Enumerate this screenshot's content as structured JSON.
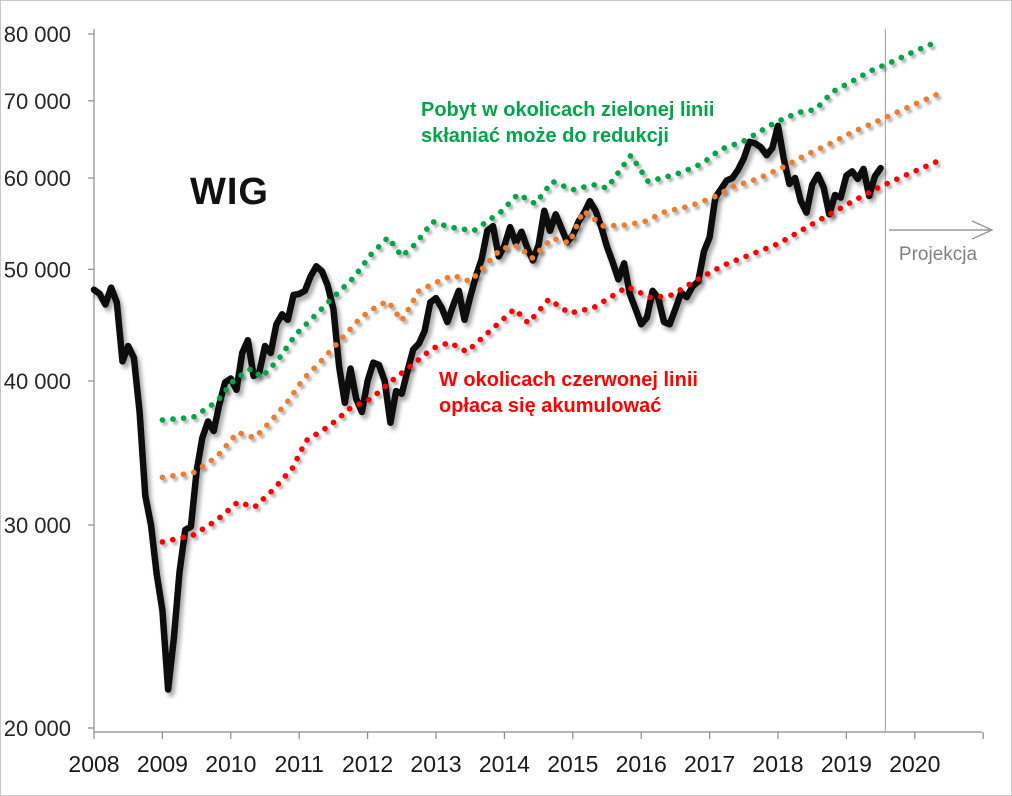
{
  "chart": {
    "title_label": "WIG",
    "projection_label": "Projekcja",
    "annotations": {
      "green_note": {
        "line1": "Pobyt w okolicach zielonej linii",
        "line2": "skłaniać może do redukcji",
        "color": "#00A44A"
      },
      "red_note": {
        "line1": "W okolicach czerwonej linii",
        "line2": "opłaca się akumulować",
        "color": "#FF0000"
      }
    }
  },
  "chart_data": {
    "type": "line",
    "title": "WIG",
    "grid": false,
    "legend": false,
    "x_axis": {
      "range": [
        2008,
        2020.99
      ],
      "tick_years": [
        2008,
        2009,
        2010,
        2011,
        2012,
        2013,
        2014,
        2015,
        2016,
        2017,
        2018,
        2019,
        2020
      ]
    },
    "y_axis": {
      "scale": "log",
      "range": [
        20000,
        80000
      ],
      "ticks": [
        {
          "value": 20000,
          "label": "20 000"
        },
        {
          "value": 30000,
          "label": "30 000"
        },
        {
          "value": 40000,
          "label": "40 000"
        },
        {
          "value": 50000,
          "label": "50 000"
        },
        {
          "value": 60000,
          "label": "60 000"
        },
        {
          "value": 70000,
          "label": "70 000"
        },
        {
          "value": 80000,
          "label": "80 000"
        }
      ]
    },
    "projection_line_x": 2019.57,
    "series": [
      {
        "name": "WIG",
        "style": "solid",
        "color": "#0D0D0D",
        "start_year": 2008.0,
        "interval_years": 0.0833333,
        "values": [
          48000,
          47600,
          46600,
          48200,
          46800,
          41600,
          42900,
          41900,
          37600,
          31800,
          30000,
          27200,
          25300,
          21600,
          23900,
          27300,
          29700,
          29900,
          33400,
          35700,
          36900,
          36200,
          38200,
          39900,
          40200,
          39300,
          42300,
          43400,
          40400,
          40700,
          42900,
          42300,
          44800,
          45700,
          45200,
          47500,
          47600,
          47900,
          49300,
          50300,
          49800,
          48400,
          46200,
          41200,
          38300,
          41000,
          38600,
          37600,
          40000,
          41500,
          41300,
          40000,
          36800,
          39200,
          39000,
          40800,
          42600,
          43100,
          44200,
          46800,
          47200,
          46300,
          45000,
          46500,
          47900,
          45200,
          47300,
          49300,
          51000,
          54000,
          54500,
          51300,
          52400,
          54400,
          52700,
          53900,
          52200,
          50900,
          52500,
          56200,
          54000,
          55800,
          54300,
          52800,
          53500,
          55000,
          56000,
          57300,
          56200,
          54400,
          52300,
          50700,
          49000,
          50600,
          47600,
          46200,
          44800,
          45400,
          47900,
          47200,
          45000,
          44800,
          46200,
          47700,
          47300,
          48300,
          48800,
          51800,
          53300,
          57700,
          58700,
          59700,
          60000,
          61000,
          62400,
          64500,
          64300,
          63800,
          62800,
          63700,
          66600,
          62400,
          59300,
          60000,
          57300,
          56000,
          59200,
          60400,
          58900,
          55800,
          58000,
          57700,
          60300,
          60800,
          59900,
          61100,
          57900,
          60200,
          61200
        ]
      },
      {
        "name": "zielona linia (strefa redukcji)",
        "style": "dotted",
        "color": "#00A44A",
        "points": [
          [
            2009.0,
            37000
          ],
          [
            2009.45,
            37200
          ],
          [
            2009.8,
            38400
          ],
          [
            2010.05,
            40100
          ],
          [
            2010.3,
            41000
          ],
          [
            2010.45,
            40300
          ],
          [
            2010.7,
            41800
          ],
          [
            2010.95,
            43900
          ],
          [
            2011.2,
            45400
          ],
          [
            2011.5,
            47300
          ],
          [
            2011.8,
            49200
          ],
          [
            2012.05,
            51500
          ],
          [
            2012.3,
            53300
          ],
          [
            2012.5,
            51300
          ],
          [
            2012.7,
            52600
          ],
          [
            2012.95,
            55000
          ],
          [
            2013.2,
            54400
          ],
          [
            2013.55,
            54000
          ],
          [
            2013.95,
            56100
          ],
          [
            2014.2,
            58100
          ],
          [
            2014.45,
            57000
          ],
          [
            2014.7,
            59600
          ],
          [
            2015.0,
            58600
          ],
          [
            2015.3,
            59200
          ],
          [
            2015.5,
            58800
          ],
          [
            2015.85,
            62800
          ],
          [
            2016.1,
            59600
          ],
          [
            2016.35,
            60100
          ],
          [
            2016.6,
            60700
          ],
          [
            2016.9,
            61800
          ],
          [
            2017.15,
            63500
          ],
          [
            2017.5,
            64600
          ],
          [
            2017.95,
            67000
          ],
          [
            2018.3,
            68400
          ],
          [
            2018.55,
            68800
          ],
          [
            2018.8,
            71300
          ],
          [
            2019.05,
            72600
          ],
          [
            2019.35,
            74300
          ],
          [
            2019.65,
            75600
          ],
          [
            2020.0,
            77300
          ],
          [
            2020.35,
            78900
          ]
        ]
      },
      {
        "name": "pomarańczowa linia (środkowa)",
        "style": "dotted",
        "color": "#ED7D31",
        "points": [
          [
            2009.0,
            33000
          ],
          [
            2009.45,
            33300
          ],
          [
            2009.8,
            34400
          ],
          [
            2010.1,
            36100
          ],
          [
            2010.35,
            35700
          ],
          [
            2010.6,
            37000
          ],
          [
            2010.85,
            38500
          ],
          [
            2011.05,
            40100
          ],
          [
            2011.3,
            41500
          ],
          [
            2011.6,
            43400
          ],
          [
            2011.9,
            45400
          ],
          [
            2012.15,
            46500
          ],
          [
            2012.3,
            46900
          ],
          [
            2012.5,
            45100
          ],
          [
            2012.75,
            47900
          ],
          [
            2013.0,
            48700
          ],
          [
            2013.25,
            49400
          ],
          [
            2013.5,
            48800
          ],
          [
            2013.95,
            52100
          ],
          [
            2014.2,
            52400
          ],
          [
            2014.4,
            51100
          ],
          [
            2014.7,
            53200
          ],
          [
            2014.95,
            52700
          ],
          [
            2015.15,
            56200
          ],
          [
            2015.45,
            54500
          ],
          [
            2015.75,
            54600
          ],
          [
            2016.05,
            55000
          ],
          [
            2016.35,
            56100
          ],
          [
            2016.7,
            56700
          ],
          [
            2017.05,
            57700
          ],
          [
            2017.35,
            59000
          ],
          [
            2017.7,
            59900
          ],
          [
            2018.05,
            61200
          ],
          [
            2018.4,
            62800
          ],
          [
            2018.75,
            64200
          ],
          [
            2019.1,
            65800
          ],
          [
            2019.5,
            67400
          ],
          [
            2019.85,
            68900
          ],
          [
            2020.35,
            71000
          ]
        ]
      },
      {
        "name": "czerwona linia (strefa akumulacji)",
        "style": "dotted",
        "color": "#FF0000",
        "points": [
          [
            2009.0,
            29000
          ],
          [
            2009.45,
            29400
          ],
          [
            2009.8,
            30300
          ],
          [
            2010.1,
            31400
          ],
          [
            2010.35,
            31100
          ],
          [
            2010.6,
            32100
          ],
          [
            2010.9,
            33600
          ],
          [
            2011.1,
            35500
          ],
          [
            2011.45,
            36600
          ],
          [
            2011.75,
            37900
          ],
          [
            2012.05,
            38600
          ],
          [
            2012.35,
            40000
          ],
          [
            2012.65,
            41300
          ],
          [
            2012.95,
            42700
          ],
          [
            2013.2,
            43200
          ],
          [
            2013.45,
            42400
          ],
          [
            2013.75,
            44000
          ],
          [
            2014.15,
            46200
          ],
          [
            2014.35,
            44900
          ],
          [
            2014.65,
            47100
          ],
          [
            2014.95,
            45800
          ],
          [
            2015.3,
            46300
          ],
          [
            2015.8,
            48300
          ],
          [
            2016.15,
            47200
          ],
          [
            2016.45,
            47500
          ],
          [
            2016.8,
            48900
          ],
          [
            2017.2,
            50400
          ],
          [
            2017.6,
            51500
          ],
          [
            2018.0,
            52600
          ],
          [
            2018.4,
            54300
          ],
          [
            2018.8,
            56000
          ],
          [
            2019.1,
            57300
          ],
          [
            2019.45,
            58800
          ],
          [
            2019.8,
            60100
          ],
          [
            2020.35,
            62100
          ]
        ]
      }
    ]
  }
}
